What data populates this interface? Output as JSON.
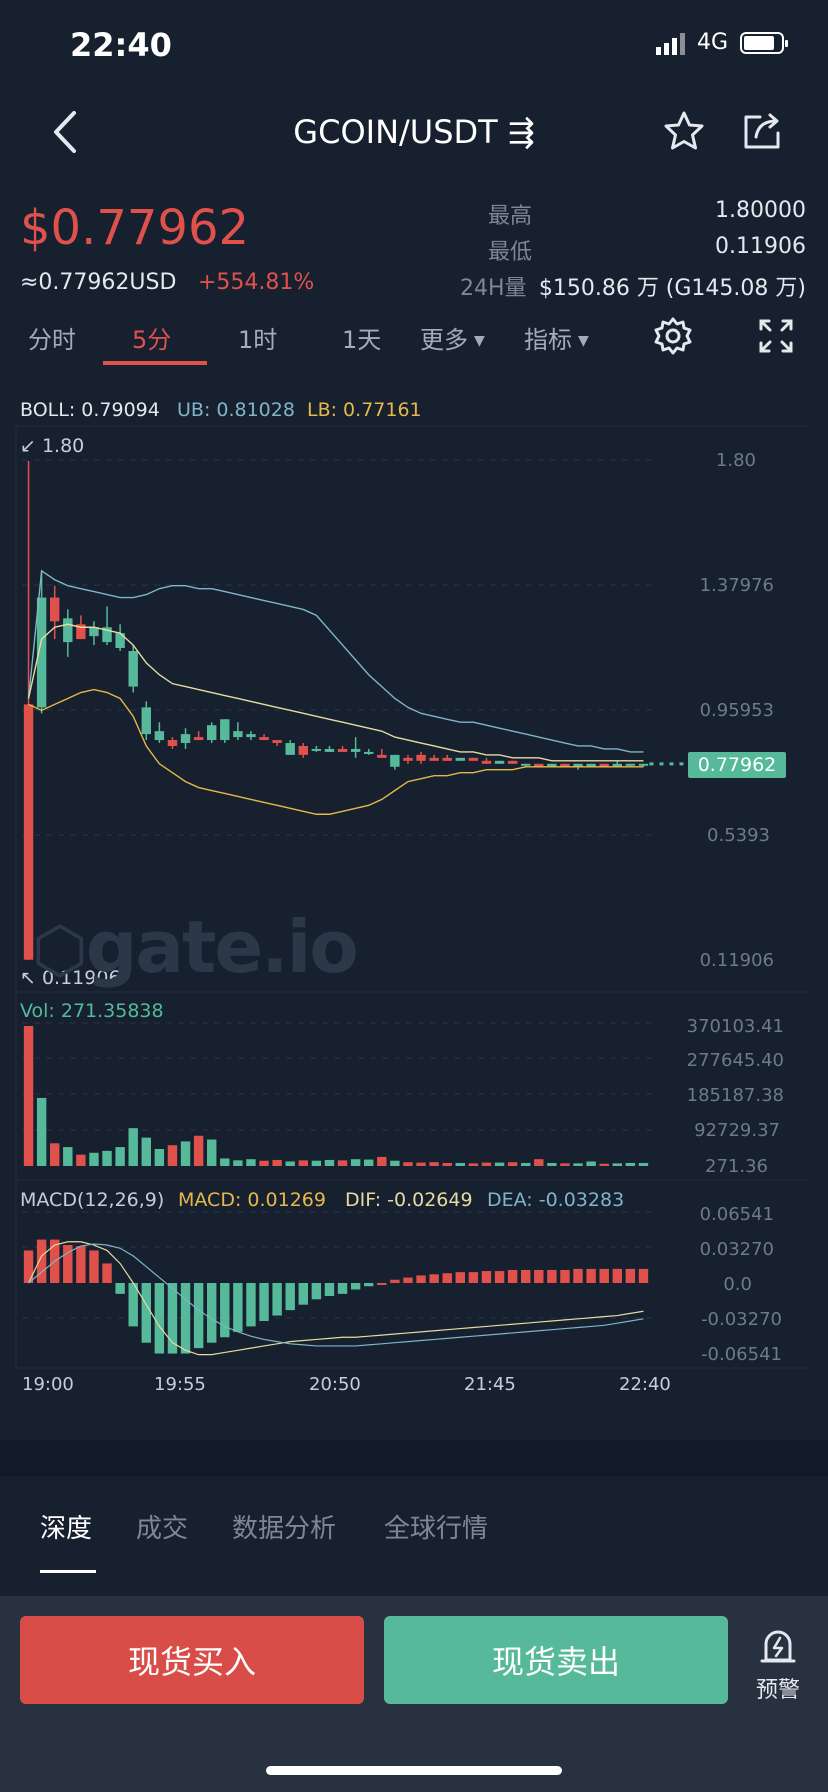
{
  "status": {
    "time": "22:40",
    "network": "4G"
  },
  "nav": {
    "title": "GCOIN/USDT ⇶",
    "star_icon": "star-icon",
    "share_icon": "share-icon"
  },
  "ticker": {
    "price": "$0.77962",
    "usd": "≈0.77962USD",
    "change": "+554.81%",
    "high_label": "最高",
    "high": "1.80000",
    "low_label": "最低",
    "low": "0.11906",
    "vol_label": "24H量",
    "vol": "$150.86 万 (G145.08 万)"
  },
  "periods": [
    {
      "label": "分时"
    },
    {
      "label": "5分",
      "active": true
    },
    {
      "label": "1时"
    },
    {
      "label": "1天"
    },
    {
      "label": "更多"
    },
    {
      "label": "指标"
    }
  ],
  "indicators": {
    "boll": "BOLL: 0.79094",
    "ub": "UB: 0.81028",
    "lb": "LB: 0.77161",
    "max_mark": "1.80",
    "min_mark": "0.11906",
    "last_price": "0.77962",
    "watermark": "gate.io",
    "vol": "Vol: 271.35838",
    "macd_title": "MACD(12,26,9)",
    "macd": "MACD: 0.01269",
    "dif": "DIF: -0.02649",
    "dea": "DEA: -0.03283"
  },
  "price_axis": [
    "1.80",
    "1.37976",
    "0.95953",
    "0.5393",
    "0.11906"
  ],
  "vol_axis": [
    "370103.41",
    "277645.40",
    "185187.38",
    "92729.37",
    "271.36"
  ],
  "macd_axis": [
    "0.06541",
    "0.03270",
    "0.0",
    "-0.03270",
    "-0.06541"
  ],
  "time_axis": [
    "19:00",
    "19:55",
    "20:50",
    "21:45",
    "22:40"
  ],
  "colors": {
    "up": "#55b99a",
    "down": "#e0514c",
    "ub": "#7fb5c7",
    "lb": "#e6b84a",
    "bg": "#16202f"
  },
  "chart_data": {
    "type": "candlestick",
    "interval": "5分",
    "y_range": [
      0.11906,
      1.8
    ],
    "candles": [
      {
        "o": 0.98,
        "h": 1.8,
        "l": 0.11906,
        "c": 0.12
      },
      {
        "o": 0.97,
        "h": 1.43,
        "l": 0.95,
        "c": 1.34
      },
      {
        "o": 1.34,
        "h": 1.38,
        "l": 1.2,
        "c": 1.26
      },
      {
        "o": 1.19,
        "h": 1.3,
        "l": 1.14,
        "c": 1.27
      },
      {
        "o": 1.25,
        "h": 1.28,
        "l": 1.2,
        "c": 1.2
      },
      {
        "o": 1.21,
        "h": 1.26,
        "l": 1.18,
        "c": 1.24
      },
      {
        "o": 1.19,
        "h": 1.31,
        "l": 1.18,
        "c": 1.24
      },
      {
        "o": 1.17,
        "h": 1.25,
        "l": 1.16,
        "c": 1.22
      },
      {
        "o": 1.04,
        "h": 1.18,
        "l": 1.02,
        "c": 1.16
      },
      {
        "o": 0.88,
        "h": 0.99,
        "l": 0.86,
        "c": 0.97
      },
      {
        "o": 0.86,
        "h": 0.92,
        "l": 0.85,
        "c": 0.89
      },
      {
        "o": 0.86,
        "h": 0.87,
        "l": 0.83,
        "c": 0.84
      },
      {
        "o": 0.85,
        "h": 0.9,
        "l": 0.83,
        "c": 0.88
      },
      {
        "o": 0.87,
        "h": 0.89,
        "l": 0.86,
        "c": 0.86
      },
      {
        "o": 0.86,
        "h": 0.92,
        "l": 0.85,
        "c": 0.91
      },
      {
        "o": 0.86,
        "h": 0.93,
        "l": 0.85,
        "c": 0.93
      },
      {
        "o": 0.87,
        "h": 0.92,
        "l": 0.86,
        "c": 0.89
      },
      {
        "o": 0.87,
        "h": 0.89,
        "l": 0.86,
        "c": 0.88
      },
      {
        "o": 0.87,
        "h": 0.88,
        "l": 0.86,
        "c": 0.86
      },
      {
        "o": 0.86,
        "h": 0.86,
        "l": 0.84,
        "c": 0.85
      },
      {
        "o": 0.81,
        "h": 0.86,
        "l": 0.81,
        "c": 0.85
      },
      {
        "o": 0.84,
        "h": 0.85,
        "l": 0.8,
        "c": 0.81
      },
      {
        "o": 0.83,
        "h": 0.84,
        "l": 0.82,
        "c": 0.83
      },
      {
        "o": 0.82,
        "h": 0.84,
        "l": 0.82,
        "c": 0.83
      },
      {
        "o": 0.83,
        "h": 0.84,
        "l": 0.82,
        "c": 0.82
      },
      {
        "o": 0.82,
        "h": 0.87,
        "l": 0.8,
        "c": 0.83
      },
      {
        "o": 0.82,
        "h": 0.83,
        "l": 0.81,
        "c": 0.82
      },
      {
        "o": 0.81,
        "h": 0.83,
        "l": 0.8,
        "c": 0.8
      },
      {
        "o": 0.77,
        "h": 0.81,
        "l": 0.76,
        "c": 0.81
      },
      {
        "o": 0.8,
        "h": 0.81,
        "l": 0.78,
        "c": 0.79
      },
      {
        "o": 0.81,
        "h": 0.82,
        "l": 0.78,
        "c": 0.79
      },
      {
        "o": 0.8,
        "h": 0.81,
        "l": 0.79,
        "c": 0.79
      },
      {
        "o": 0.8,
        "h": 0.81,
        "l": 0.79,
        "c": 0.79
      },
      {
        "o": 0.79,
        "h": 0.8,
        "l": 0.79,
        "c": 0.8
      },
      {
        "o": 0.8,
        "h": 0.8,
        "l": 0.79,
        "c": 0.79
      },
      {
        "o": 0.79,
        "h": 0.8,
        "l": 0.78,
        "c": 0.78
      },
      {
        "o": 0.78,
        "h": 0.79,
        "l": 0.78,
        "c": 0.79
      },
      {
        "o": 0.79,
        "h": 0.79,
        "l": 0.78,
        "c": 0.78
      },
      {
        "o": 0.78,
        "h": 0.78,
        "l": 0.77,
        "c": 0.78
      },
      {
        "o": 0.78,
        "h": 0.78,
        "l": 0.77,
        "c": 0.77
      },
      {
        "o": 0.77,
        "h": 0.78,
        "l": 0.77,
        "c": 0.78
      },
      {
        "o": 0.78,
        "h": 0.78,
        "l": 0.77,
        "c": 0.77
      },
      {
        "o": 0.77,
        "h": 0.78,
        "l": 0.76,
        "c": 0.78
      },
      {
        "o": 0.77,
        "h": 0.78,
        "l": 0.77,
        "c": 0.78
      },
      {
        "o": 0.78,
        "h": 0.78,
        "l": 0.77,
        "c": 0.77
      },
      {
        "o": 0.77,
        "h": 0.79,
        "l": 0.77,
        "c": 0.78
      },
      {
        "o": 0.78,
        "h": 0.78,
        "l": 0.77,
        "c": 0.78
      },
      {
        "o": 0.78,
        "h": 0.78,
        "l": 0.77,
        "c": 0.78
      }
    ],
    "ub": [
      1.0,
      1.43,
      1.4,
      1.38,
      1.37,
      1.36,
      1.35,
      1.34,
      1.34,
      1.35,
      1.37,
      1.38,
      1.38,
      1.37,
      1.37,
      1.36,
      1.35,
      1.34,
      1.33,
      1.32,
      1.31,
      1.3,
      1.28,
      1.23,
      1.18,
      1.13,
      1.08,
      1.04,
      1.0,
      0.97,
      0.95,
      0.94,
      0.93,
      0.92,
      0.92,
      0.91,
      0.9,
      0.89,
      0.88,
      0.87,
      0.86,
      0.85,
      0.84,
      0.84,
      0.83,
      0.83,
      0.82,
      0.82
    ],
    "mid": [
      1.0,
      1.2,
      1.24,
      1.25,
      1.24,
      1.24,
      1.23,
      1.22,
      1.18,
      1.12,
      1.08,
      1.05,
      1.04,
      1.03,
      1.02,
      1.01,
      1.0,
      0.99,
      0.98,
      0.97,
      0.96,
      0.95,
      0.94,
      0.93,
      0.92,
      0.91,
      0.9,
      0.89,
      0.87,
      0.86,
      0.85,
      0.84,
      0.83,
      0.82,
      0.82,
      0.81,
      0.81,
      0.8,
      0.8,
      0.8,
      0.79,
      0.79,
      0.79,
      0.79,
      0.79,
      0.79,
      0.79,
      0.79
    ],
    "lb": [
      0.98,
      0.96,
      0.98,
      1.0,
      1.02,
      1.03,
      1.02,
      1.0,
      0.94,
      0.84,
      0.78,
      0.75,
      0.72,
      0.7,
      0.69,
      0.68,
      0.67,
      0.66,
      0.65,
      0.64,
      0.63,
      0.62,
      0.61,
      0.61,
      0.62,
      0.63,
      0.64,
      0.66,
      0.69,
      0.72,
      0.73,
      0.74,
      0.74,
      0.75,
      0.75,
      0.76,
      0.76,
      0.76,
      0.77,
      0.77,
      0.77,
      0.77,
      0.77,
      0.77,
      0.77,
      0.77,
      0.77,
      0.77
    ],
    "volume": [
      370103,
      180000,
      60000,
      50000,
      30000,
      35000,
      40000,
      50000,
      100000,
      75000,
      45000,
      55000,
      65000,
      80000,
      70000,
      20000,
      15000,
      18000,
      14000,
      16000,
      12000,
      15000,
      14000,
      16000,
      15000,
      18000,
      17000,
      24000,
      14000,
      10000,
      9000,
      10000,
      8000,
      8000,
      7000,
      9000,
      9000,
      10000,
      8000,
      18000,
      8000,
      7000,
      7000,
      12000,
      6000,
      7000,
      8000,
      8000
    ],
    "macd_hist": [
      0.03,
      0.04,
      0.04,
      0.035,
      0.034,
      0.03,
      0.018,
      -0.01,
      -0.04,
      -0.055,
      -0.065,
      -0.065,
      -0.065,
      -0.06,
      -0.055,
      -0.05,
      -0.045,
      -0.04,
      -0.035,
      -0.03,
      -0.025,
      -0.02,
      -0.015,
      -0.012,
      -0.01,
      -0.006,
      -0.003,
      0.0,
      0.003,
      0.005,
      0.007,
      0.008,
      0.009,
      0.01,
      0.01,
      0.011,
      0.011,
      0.012,
      0.012,
      0.012,
      0.012,
      0.012,
      0.013,
      0.013,
      0.013,
      0.013,
      0.013,
      0.013
    ],
    "dif": [
      0.0,
      0.025,
      0.035,
      0.038,
      0.038,
      0.035,
      0.03,
      0.018,
      0.0,
      -0.02,
      -0.04,
      -0.055,
      -0.062,
      -0.066,
      -0.066,
      -0.064,
      -0.062,
      -0.06,
      -0.058,
      -0.056,
      -0.054,
      -0.053,
      -0.052,
      -0.051,
      -0.05,
      -0.05,
      -0.049,
      -0.048,
      -0.047,
      -0.046,
      -0.045,
      -0.044,
      -0.043,
      -0.042,
      -0.041,
      -0.04,
      -0.039,
      -0.038,
      -0.037,
      -0.036,
      -0.035,
      -0.034,
      -0.033,
      -0.032,
      -0.031,
      -0.03,
      -0.028,
      -0.026
    ],
    "dea": [
      0.0,
      0.01,
      0.02,
      0.028,
      0.034,
      0.036,
      0.035,
      0.032,
      0.025,
      0.015,
      0.005,
      -0.005,
      -0.015,
      -0.025,
      -0.033,
      -0.04,
      -0.045,
      -0.049,
      -0.052,
      -0.054,
      -0.056,
      -0.057,
      -0.058,
      -0.058,
      -0.058,
      -0.058,
      -0.057,
      -0.056,
      -0.055,
      -0.054,
      -0.053,
      -0.052,
      -0.051,
      -0.05,
      -0.049,
      -0.048,
      -0.047,
      -0.046,
      -0.045,
      -0.044,
      -0.043,
      -0.042,
      -0.041,
      -0.04,
      -0.039,
      -0.037,
      -0.035,
      -0.033
    ]
  },
  "tabs": [
    {
      "label": "深度",
      "active": true
    },
    {
      "label": "成交"
    },
    {
      "label": "数据分析"
    },
    {
      "label": "全球行情"
    }
  ],
  "actions": {
    "buy": "现货买入",
    "sell": "现货卖出",
    "alert": "预警"
  }
}
